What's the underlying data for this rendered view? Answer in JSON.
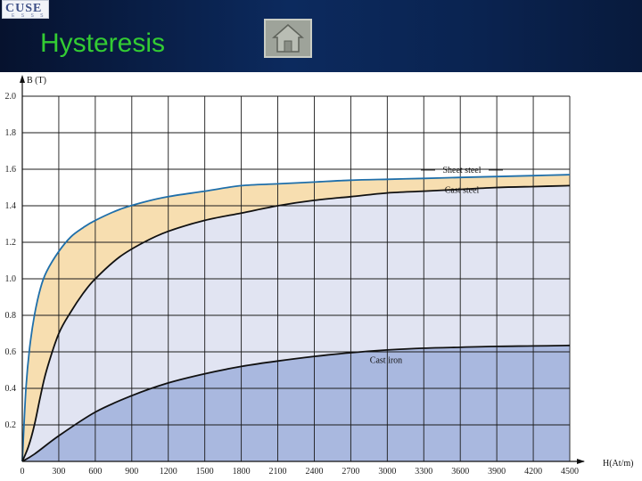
{
  "header": {
    "logo_text": "CUSE",
    "logo_subtext": "E S S S",
    "title": "Hysteresis",
    "home_icon": "home-icon"
  },
  "colors": {
    "header_bg": "#0b2552",
    "title": "#33cc33",
    "sheet_fill": "#f7deb0",
    "cast_steel_fill": "#e1e4f2",
    "cast_iron_fill": "#a9b8df",
    "curve_blue": "#1f6faa",
    "curve_black": "#111111"
  },
  "chart_data": {
    "type": "area",
    "xlabel": "H(At/m)",
    "ylabel": "B (T)",
    "xlim": [
      0,
      4500
    ],
    "ylim": [
      0,
      2.0
    ],
    "grid": true,
    "x_ticks": [
      0,
      300,
      600,
      900,
      1200,
      1500,
      1800,
      2100,
      2400,
      2700,
      3000,
      3300,
      3600,
      3900,
      4200,
      4500
    ],
    "y_ticks": [
      0.2,
      0.4,
      0.6,
      0.8,
      1.0,
      1.2,
      1.4,
      1.6,
      1.8,
      2.0
    ],
    "y_tick_labels": [
      "0.2",
      "0.4",
      "0.6",
      "0.8",
      "1.0",
      "1.2",
      "1.4",
      "1.6",
      "1.8",
      "2.0"
    ],
    "x_tick_labels": [
      "0",
      "300",
      "600",
      "900",
      "1200",
      "1500",
      "1800",
      "2100",
      "2400",
      "2700",
      "3000",
      "3300",
      "3600",
      "3900",
      "4200",
      "4500"
    ],
    "series": [
      {
        "name": "Sheet steel",
        "x": [
          0,
          30,
          60,
          100,
          150,
          200,
          300,
          400,
          500,
          600,
          800,
          1000,
          1200,
          1500,
          1800,
          2100,
          2400,
          2700,
          3000,
          3300,
          3600,
          3900,
          4200,
          4500
        ],
        "y": [
          0,
          0.4,
          0.62,
          0.8,
          0.95,
          1.04,
          1.15,
          1.23,
          1.28,
          1.32,
          1.38,
          1.42,
          1.45,
          1.48,
          1.51,
          1.52,
          1.53,
          1.54,
          1.545,
          1.55,
          1.555,
          1.56,
          1.565,
          1.57
        ]
      },
      {
        "name": "Cast steel",
        "x": [
          0,
          50,
          100,
          150,
          200,
          300,
          400,
          500,
          600,
          800,
          1000,
          1200,
          1500,
          1800,
          2100,
          2400,
          2700,
          3000,
          3300,
          3600,
          3900,
          4200,
          4500
        ],
        "y": [
          0,
          0.08,
          0.2,
          0.36,
          0.5,
          0.7,
          0.82,
          0.92,
          1.0,
          1.12,
          1.2,
          1.26,
          1.32,
          1.36,
          1.4,
          1.43,
          1.45,
          1.47,
          1.48,
          1.49,
          1.5,
          1.505,
          1.51
        ]
      },
      {
        "name": "Cast iron",
        "x": [
          0,
          100,
          300,
          600,
          900,
          1200,
          1500,
          1800,
          2100,
          2400,
          2700,
          3000,
          3300,
          3600,
          3900,
          4200,
          4500
        ],
        "y": [
          0,
          0.04,
          0.14,
          0.27,
          0.36,
          0.43,
          0.48,
          0.52,
          0.55,
          0.575,
          0.595,
          0.61,
          0.62,
          0.625,
          0.63,
          0.632,
          0.635
        ]
      }
    ]
  }
}
